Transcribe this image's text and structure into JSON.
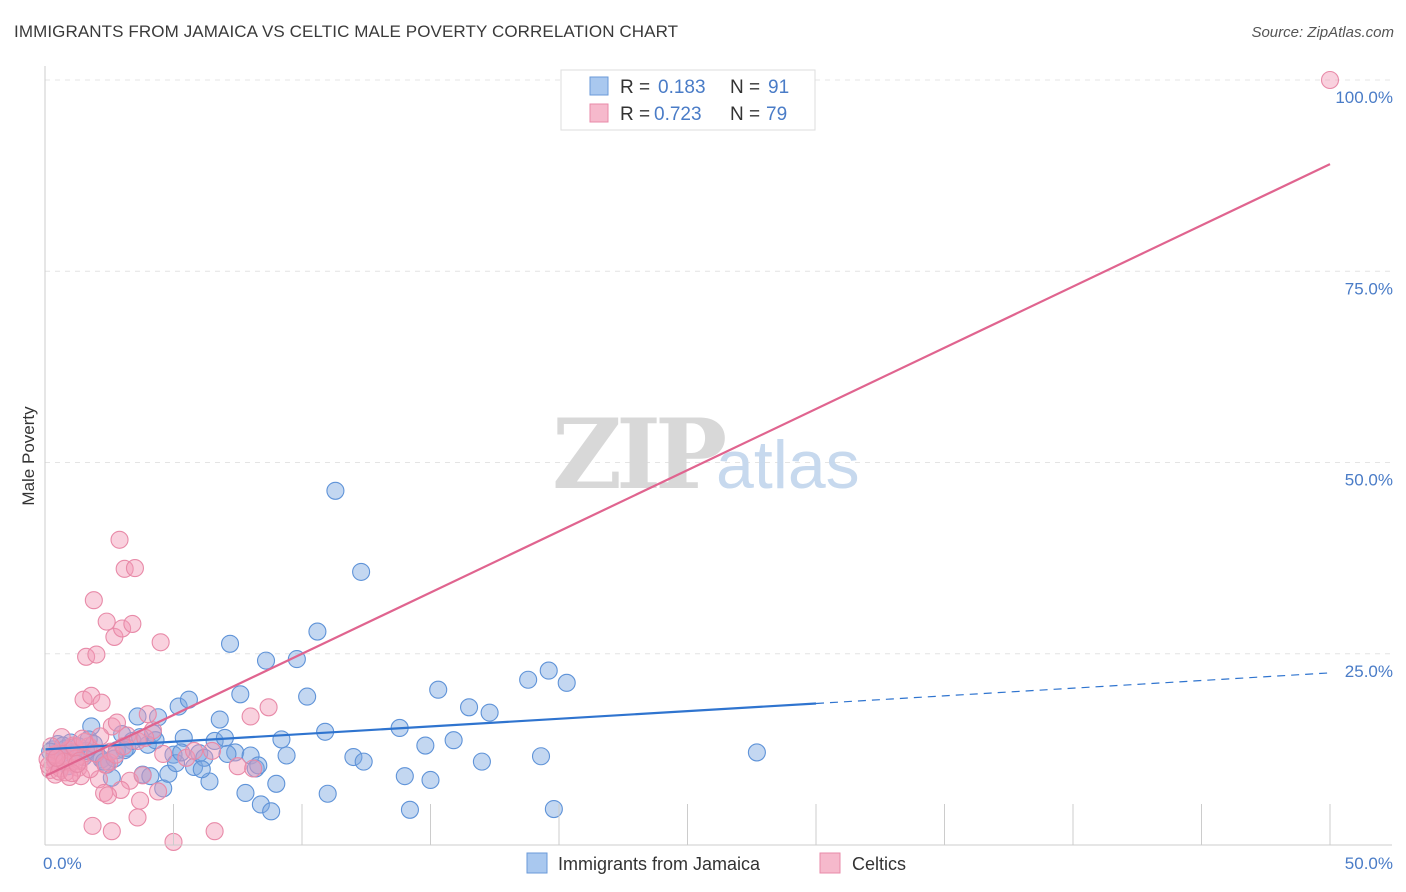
{
  "title": "IMMIGRANTS FROM JAMAICA VS CELTIC MALE POVERTY CORRELATION CHART",
  "source": "Source: ZipAtlas.com",
  "watermark": {
    "zip": "ZIP",
    "atlas": "atlas"
  },
  "legend_top": [
    {
      "r_label": "R =",
      "r_value": "0.183",
      "n_label": "N =",
      "n_value": "91",
      "fill": "#a9c8ef",
      "stroke": "#6a9ad8"
    },
    {
      "r_label": "R =",
      "r_value": "0.723",
      "n_label": "N =",
      "n_value": "79",
      "fill": "#f6b9cc",
      "stroke": "#e88aa8"
    }
  ],
  "legend_bottom": [
    {
      "label": "Immigrants from Jamaica",
      "fill": "#a9c8ef",
      "stroke": "#6a9ad8"
    },
    {
      "label": "Celtics",
      "fill": "#f6b9cc",
      "stroke": "#e88aa8"
    }
  ],
  "colors": {
    "blue_point": "#7aa7e0",
    "pink_point": "#f19ab6",
    "blue_line": "#2f74cf",
    "pink_line": "#e0648f",
    "axis_text": "#4a7cc7"
  },
  "chart_data": {
    "type": "scatter",
    "title": "IMMIGRANTS FROM JAMAICA VS CELTIC MALE POVERTY CORRELATION CHART",
    "xlabel": "",
    "ylabel": "Male Poverty",
    "xlim": [
      0,
      50
    ],
    "ylim": [
      0,
      100
    ],
    "x_tick_labels": [
      "0.0%",
      "50.0%"
    ],
    "y_ticks": [
      25,
      50,
      75,
      100
    ],
    "y_tick_labels": [
      "25.0%",
      "50.0%",
      "75.0%",
      "100.0%"
    ],
    "grid": true,
    "series": [
      {
        "name": "Immigrants from Jamaica",
        "R": 0.183,
        "N": 91,
        "trend": {
          "x0": 0,
          "y0": 12.5,
          "x1": 30,
          "y1": 18.5,
          "dashed_to_x": 50,
          "dashed_to_y": 22.5
        },
        "points": [
          [
            0.3,
            12.5
          ],
          [
            0.5,
            13.2
          ],
          [
            0.6,
            11.8
          ],
          [
            0.8,
            12.6
          ],
          [
            1.0,
            13.4
          ],
          [
            1.1,
            12.1
          ],
          [
            1.3,
            12.9
          ],
          [
            1.5,
            11.5
          ],
          [
            1.7,
            13.8
          ],
          [
            1.8,
            15.5
          ],
          [
            2.0,
            12.0
          ],
          [
            2.2,
            11.2
          ],
          [
            2.4,
            10.5
          ],
          [
            2.6,
            8.8
          ],
          [
            2.8,
            12.4
          ],
          [
            3.0,
            14.5
          ],
          [
            3.2,
            12.7
          ],
          [
            3.4,
            13.6
          ],
          [
            3.6,
            16.8
          ],
          [
            3.8,
            9.2
          ],
          [
            4.0,
            13.1
          ],
          [
            4.2,
            14.6
          ],
          [
            4.4,
            16.7
          ],
          [
            4.6,
            7.4
          ],
          [
            4.8,
            9.3
          ],
          [
            5.0,
            11.8
          ],
          [
            5.2,
            18.1
          ],
          [
            5.4,
            14.0
          ],
          [
            5.6,
            19.0
          ],
          [
            5.8,
            10.2
          ],
          [
            6.0,
            12.0
          ],
          [
            6.2,
            11.4
          ],
          [
            6.4,
            8.3
          ],
          [
            6.6,
            13.6
          ],
          [
            6.8,
            16.4
          ],
          [
            7.0,
            14.0
          ],
          [
            7.2,
            26.3
          ],
          [
            7.4,
            12.1
          ],
          [
            7.6,
            19.7
          ],
          [
            7.8,
            6.8
          ],
          [
            8.0,
            11.7
          ],
          [
            8.2,
            10.0
          ],
          [
            8.4,
            5.3
          ],
          [
            8.6,
            24.1
          ],
          [
            8.8,
            4.4
          ],
          [
            9.0,
            8.0
          ],
          [
            9.2,
            13.8
          ],
          [
            9.4,
            11.7
          ],
          [
            9.8,
            24.3
          ],
          [
            10.2,
            19.4
          ],
          [
            10.6,
            27.9
          ],
          [
            10.9,
            14.8
          ],
          [
            11.0,
            6.7
          ],
          [
            11.3,
            46.3
          ],
          [
            12.0,
            11.5
          ],
          [
            12.3,
            35.7
          ],
          [
            12.4,
            10.9
          ],
          [
            13.8,
            15.3
          ],
          [
            14.0,
            9.0
          ],
          [
            14.2,
            4.6
          ],
          [
            14.8,
            13.0
          ],
          [
            15.0,
            8.5
          ],
          [
            15.3,
            20.3
          ],
          [
            15.9,
            13.7
          ],
          [
            16.5,
            18.0
          ],
          [
            17.0,
            10.9
          ],
          [
            17.3,
            17.3
          ],
          [
            18.8,
            21.6
          ],
          [
            19.3,
            11.6
          ],
          [
            19.6,
            22.8
          ],
          [
            19.8,
            4.7
          ],
          [
            20.3,
            21.2
          ],
          [
            27.7,
            12.1
          ],
          [
            0.4,
            11.0
          ],
          [
            0.9,
            10.3
          ],
          [
            1.6,
            12.3
          ],
          [
            2.3,
            10.9
          ],
          [
            3.1,
            12.4
          ],
          [
            4.1,
            9.0
          ],
          [
            5.1,
            10.7
          ],
          [
            6.1,
            9.9
          ],
          [
            7.1,
            11.9
          ],
          [
            0.2,
            12.2
          ],
          [
            0.7,
            13.0
          ],
          [
            1.2,
            12.0
          ],
          [
            1.9,
            13.2
          ],
          [
            2.7,
            11.3
          ],
          [
            3.7,
            14.1
          ],
          [
            4.3,
            13.7
          ],
          [
            5.3,
            12.1
          ],
          [
            8.3,
            10.4
          ]
        ]
      },
      {
        "name": "Celtics",
        "R": 0.723,
        "N": 79,
        "trend": {
          "x0": 0,
          "y0": 9.0,
          "x1": 50,
          "y1": 89.0
        },
        "points": [
          [
            0.1,
            11.2
          ],
          [
            0.2,
            9.8
          ],
          [
            0.3,
            10.5
          ],
          [
            0.4,
            9.2
          ],
          [
            0.5,
            12.0
          ],
          [
            0.6,
            10.0
          ],
          [
            0.7,
            11.6
          ],
          [
            0.8,
            9.5
          ],
          [
            0.9,
            12.4
          ],
          [
            1.0,
            10.8
          ],
          [
            1.1,
            13.0
          ],
          [
            1.2,
            11.3
          ],
          [
            1.3,
            10.1
          ],
          [
            1.4,
            9.0
          ],
          [
            1.5,
            19.0
          ],
          [
            1.6,
            24.6
          ],
          [
            1.7,
            12.9
          ],
          [
            1.8,
            19.5
          ],
          [
            1.9,
            32.0
          ],
          [
            2.0,
            24.9
          ],
          [
            2.1,
            8.6
          ],
          [
            2.2,
            18.6
          ],
          [
            2.3,
            6.8
          ],
          [
            2.4,
            29.2
          ],
          [
            2.5,
            10.8
          ],
          [
            2.6,
            15.5
          ],
          [
            2.7,
            27.2
          ],
          [
            2.8,
            16.0
          ],
          [
            2.9,
            39.9
          ],
          [
            3.0,
            28.3
          ],
          [
            3.1,
            36.1
          ],
          [
            3.2,
            14.3
          ],
          [
            3.3,
            8.4
          ],
          [
            3.4,
            28.9
          ],
          [
            3.5,
            36.2
          ],
          [
            3.6,
            13.6
          ],
          [
            3.7,
            5.8
          ],
          [
            3.8,
            9.1
          ],
          [
            4.0,
            17.1
          ],
          [
            4.2,
            15.0
          ],
          [
            4.5,
            26.5
          ],
          [
            5.5,
            11.4
          ],
          [
            6.5,
            12.3
          ],
          [
            8.0,
            16.8
          ],
          [
            8.7,
            18.0
          ],
          [
            0.15,
            10.4
          ],
          [
            0.35,
            11.8
          ],
          [
            0.55,
            9.6
          ],
          [
            0.75,
            10.9
          ],
          [
            0.95,
            8.9
          ],
          [
            1.15,
            12.8
          ],
          [
            1.35,
            11.0
          ],
          [
            1.55,
            13.5
          ],
          [
            1.75,
            9.9
          ],
          [
            1.95,
            12.0
          ],
          [
            2.15,
            14.2
          ],
          [
            2.35,
            10.5
          ],
          [
            2.55,
            12.2
          ],
          [
            2.75,
            11.8
          ],
          [
            2.95,
            7.2
          ],
          [
            1.85,
            2.5
          ],
          [
            2.6,
            1.8
          ],
          [
            3.6,
            3.6
          ],
          [
            4.4,
            7.0
          ],
          [
            5.0,
            0.4
          ],
          [
            6.6,
            1.8
          ],
          [
            7.5,
            10.3
          ],
          [
            8.1,
            10.0
          ],
          [
            1.05,
            9.4
          ],
          [
            1.45,
            13.9
          ],
          [
            0.65,
            14.1
          ],
          [
            2.45,
            6.5
          ],
          [
            3.05,
            12.9
          ],
          [
            3.9,
            14.0
          ],
          [
            4.6,
            11.9
          ],
          [
            5.8,
            12.3
          ],
          [
            0.25,
            12.9
          ],
          [
            0.45,
            11.4
          ],
          [
            1.25,
            10.6
          ],
          [
            50.0,
            100.0
          ]
        ]
      }
    ]
  }
}
